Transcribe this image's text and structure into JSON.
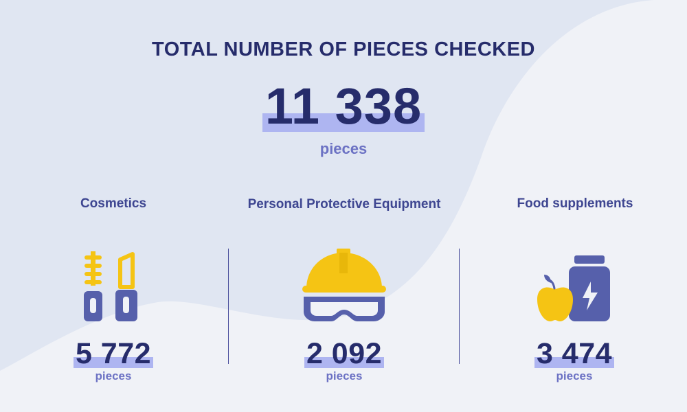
{
  "title": "TOTAL NUMBER OF PIECES CHECKED",
  "total": {
    "value": "11 338",
    "unit": "pieces"
  },
  "categories": [
    {
      "label": "Cosmetics",
      "value": "5 772",
      "unit": "pieces",
      "icon": "lipstick-mascara-icon"
    },
    {
      "label": "Personal Protective Equipment",
      "value": "2 092",
      "unit": "pieces",
      "icon": "hard-hat-goggles-icon"
    },
    {
      "label": "Food supplements",
      "value": "3 474",
      "unit": "pieces",
      "icon": "supplement-jar-apple-icon"
    }
  ],
  "colors": {
    "navy": "#262c6b",
    "label_blue": "#3e4691",
    "icon_blue": "#5660ab",
    "highlight": "#aeb5f1",
    "unit_text": "#6c72c4",
    "yellow": "#f5c414",
    "background_light": "#f0f2f7",
    "background_shape": "#e0e6f2"
  }
}
